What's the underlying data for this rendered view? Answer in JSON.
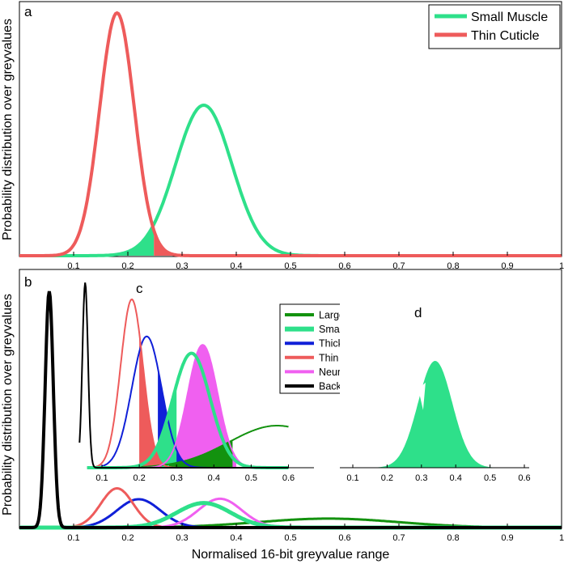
{
  "figure": {
    "panel_letters": {
      "a": "a",
      "b": "b",
      "c": "c",
      "d": "d"
    },
    "ylabel": "Probability distribution over greyvalues",
    "xlabel": "Normalised 16-bit greyvalue range"
  },
  "colors": {
    "small_muscle": "#2ee08a",
    "thin_cuticle": "#ee5b5b",
    "large_muscle": "#13920f",
    "thick_cuticle": "#1020d8",
    "neuropiles": "#f060f0",
    "background": "#000000"
  },
  "chart_data": [
    {
      "id": "a",
      "type": "line",
      "title": "",
      "xlabel": "Normalised 16-bit greyvalue range",
      "ylabel": "Probability distribution over greyvalues",
      "xlim": [
        0,
        1
      ],
      "xticks": [
        "0.1",
        "0.2",
        "0.3",
        "0.4",
        "0.5",
        "0.6",
        "0.7",
        "0.8",
        "0.9",
        "1"
      ],
      "legend_position": "top-right",
      "series": [
        {
          "name": "Small Muscle",
          "distribution": "gaussian",
          "mean": 0.34,
          "sd": 0.052,
          "peak": 0.62
        },
        {
          "name": "Thin Cuticle",
          "distribution": "gaussian",
          "mean": 0.18,
          "sd": 0.032,
          "peak": 1.0
        }
      ],
      "overlap_fill": {
        "threshold": 0.248
      }
    },
    {
      "id": "b",
      "type": "line",
      "xlabel": "Normalised 16-bit greyvalue range",
      "ylabel": "Probability distribution over greyvalues",
      "xlim": [
        0,
        1
      ],
      "xticks": [
        "0.1",
        "0.2",
        "0.3",
        "0.4",
        "0.5",
        "0.6",
        "0.7",
        "0.8",
        "0.9",
        "1"
      ],
      "series": [
        {
          "name": "Background",
          "mean": 0.055,
          "sd": 0.0075,
          "peak": 1.0
        },
        {
          "name": "Thin Cuticle",
          "mean": 0.18,
          "sd": 0.03,
          "peak": 0.166
        },
        {
          "name": "Thick Cuticle",
          "mean": 0.22,
          "sd": 0.04,
          "peak": 0.12
        },
        {
          "name": "Neuropiles",
          "mean": 0.37,
          "sd": 0.04,
          "peak": 0.122
        },
        {
          "name": "Small Muscle",
          "mean": 0.34,
          "sd": 0.05,
          "peak": 0.104
        },
        {
          "name": "Large Muscle",
          "mean": 0.57,
          "sd": 0.13,
          "peak": 0.038
        }
      ]
    },
    {
      "id": "c",
      "type": "line",
      "xlim": [
        0.04,
        0.62
      ],
      "xticks": [
        "0.1",
        "0.2",
        "0.3",
        "0.4",
        "0.5",
        "0.6"
      ],
      "legend_position": "top-right",
      "series": [
        {
          "name": "Large Muscle",
          "mean": 0.57,
          "sd": 0.13,
          "peak": 0.25
        },
        {
          "name": "Small Muscle",
          "mean": 0.34,
          "sd": 0.05,
          "peak": 0.68
        },
        {
          "name": "Thick Cuticle",
          "mean": 0.22,
          "sd": 0.04,
          "peak": 0.78
        },
        {
          "name": "Thin Cuticle",
          "mean": 0.18,
          "sd": 0.03,
          "peak": 1.0
        },
        {
          "name": "Neuropiles",
          "mean": 0.37,
          "sd": 0.04,
          "peak": 0.73
        },
        {
          "name": "Background",
          "mean": 0.055,
          "sd": 0.0075,
          "peak": 1.1
        }
      ]
    },
    {
      "id": "d",
      "type": "area",
      "xlim": [
        0.04,
        0.62
      ],
      "xticks": [
        "0.1",
        "0.2",
        "0.3",
        "0.4",
        "0.5",
        "0.6"
      ],
      "series": [
        {
          "name": "Small Muscle",
          "mean": 0.34,
          "sd": 0.05,
          "peak": 1.0,
          "notch_at": 0.305
        }
      ]
    }
  ],
  "legends": {
    "a": [
      "Small Muscle",
      "Thin Cuticle"
    ],
    "c": [
      "Large Muscle",
      "Small Muscle",
      "Thick Cuticle",
      "Thin Cuticle",
      "Neuropiles",
      "Background"
    ]
  }
}
